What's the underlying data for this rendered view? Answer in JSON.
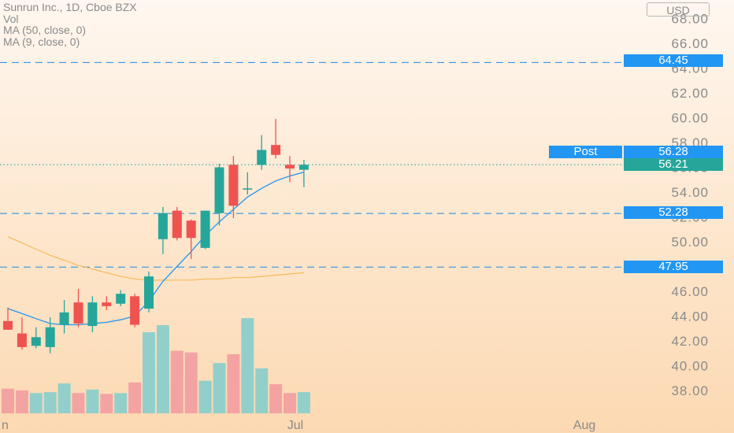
{
  "legend": {
    "symbol": "Sunrun Inc., 1D, Cboe BZX",
    "vol": "Vol",
    "ma50": "MA (50, close, 0)",
    "ma9": "MA (9, close, 0)"
  },
  "price_unit": "USD",
  "x_labels": [
    {
      "text": "n",
      "x": 0
    },
    {
      "text": "Jul",
      "x": 20
    },
    {
      "text": "Aug",
      "x": 40
    }
  ],
  "price_tags": {
    "post_label": "Post",
    "post_value": "56.28",
    "last_value": "56.21",
    "levels": [
      "64.45",
      "52.28",
      "47.95"
    ]
  },
  "colors": {
    "up": "#26a69a",
    "down": "#ef5350",
    "up_volume": "#93cfca",
    "down_volume": "#f4a3a3",
    "ma9": "#2196f3",
    "ma50": "#f7b95a",
    "level_line": "#1e88e5",
    "tag_blue": "#2196f3",
    "tag_green": "#26a69a"
  },
  "chart_data": {
    "type": "candlestick",
    "title": "Sunrun Inc., 1D, Cboe BZX",
    "y_axis": {
      "ticks": [
        "38.00",
        "40.00",
        "42.00",
        "44.00",
        "46.00",
        "48.00",
        "50.00",
        "52.00",
        "54.00",
        "56.00",
        "58.00",
        "60.00",
        "62.00",
        "64.00",
        "66.00",
        "68.00"
      ],
      "range": [
        36.5,
        69.5
      ],
      "unit": "USD"
    },
    "candles": [
      {
        "o": 43.6,
        "h": 44.7,
        "l": 42.9,
        "c": 42.9
      },
      {
        "o": 42.6,
        "h": 43.9,
        "l": 41.3,
        "c": 41.5
      },
      {
        "o": 41.6,
        "h": 43.1,
        "l": 41.4,
        "c": 42.3
      },
      {
        "o": 41.5,
        "h": 43.9,
        "l": 41.0,
        "c": 43.1
      },
      {
        "o": 43.3,
        "h": 45.3,
        "l": 42.6,
        "c": 44.3
      },
      {
        "o": 45.1,
        "h": 46.2,
        "l": 43.1,
        "c": 43.4
      },
      {
        "o": 43.2,
        "h": 45.6,
        "l": 42.7,
        "c": 45.1
      },
      {
        "o": 45.1,
        "h": 45.6,
        "l": 44.5,
        "c": 44.8
      },
      {
        "o": 45.0,
        "h": 46.1,
        "l": 44.8,
        "c": 45.8
      },
      {
        "o": 45.6,
        "h": 45.8,
        "l": 43.1,
        "c": 43.3
      },
      {
        "o": 44.6,
        "h": 47.6,
        "l": 44.3,
        "c": 47.2
      },
      {
        "o": 50.2,
        "h": 52.8,
        "l": 49.0,
        "c": 52.3
      },
      {
        "o": 52.5,
        "h": 52.8,
        "l": 50.1,
        "c": 50.3
      },
      {
        "o": 51.7,
        "h": 51.8,
        "l": 48.6,
        "c": 50.3
      },
      {
        "o": 49.5,
        "h": 52.5,
        "l": 49.4,
        "c": 52.5
      },
      {
        "o": 52.3,
        "h": 56.3,
        "l": 51.3,
        "c": 56.0
      },
      {
        "o": 56.2,
        "h": 56.9,
        "l": 51.9,
        "c": 52.9
      },
      {
        "o": 54.2,
        "h": 55.6,
        "l": 53.8,
        "c": 54.3
      },
      {
        "o": 56.2,
        "h": 58.6,
        "l": 55.8,
        "c": 57.4
      },
      {
        "o": 57.8,
        "h": 59.9,
        "l": 56.7,
        "c": 57.0
      },
      {
        "o": 56.2,
        "h": 56.9,
        "l": 54.8,
        "c": 55.9
      },
      {
        "o": 55.8,
        "h": 56.6,
        "l": 54.4,
        "c": 56.2
      }
    ],
    "volume_relative": [
      0.28,
      0.26,
      0.23,
      0.24,
      0.34,
      0.23,
      0.27,
      0.22,
      0.23,
      0.35,
      0.92,
      1.0,
      0.71,
      0.69,
      0.37,
      0.57,
      0.67,
      1.08,
      0.51,
      0.33,
      0.23,
      0.24
    ],
    "ma9": [
      44.6,
      44.2,
      43.8,
      43.4,
      43.3,
      43.3,
      43.4,
      43.5,
      43.7,
      44.0,
      45.2,
      46.8,
      48.0,
      49.2,
      50.5,
      51.6,
      52.6,
      53.6,
      54.3,
      54.9,
      55.3,
      55.6
    ],
    "ma50": [
      50.4,
      49.9,
      49.4,
      48.9,
      48.5,
      48.1,
      47.8,
      47.5,
      47.2,
      47.0,
      46.9,
      46.9,
      46.9,
      46.9,
      47.0,
      47.0,
      47.1,
      47.1,
      47.2,
      47.3,
      47.4,
      47.5
    ],
    "horizontal_levels": [
      64.45,
      52.28,
      47.95
    ],
    "post_price": 56.28,
    "last_price": 56.21,
    "x_ticks": [
      "n",
      "Jul",
      "Aug"
    ]
  }
}
